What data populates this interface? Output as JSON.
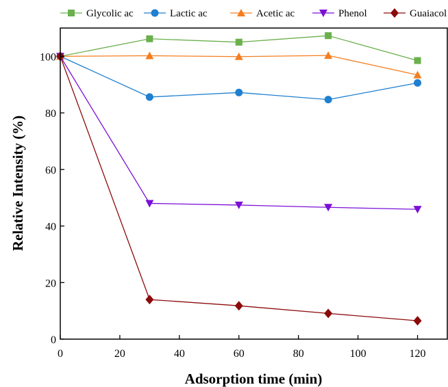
{
  "chart_data": {
    "type": "line",
    "title": "",
    "xlabel": "Adsorption time (min)",
    "ylabel": "Relative Intensity (%)",
    "xlim": [
      0,
      130
    ],
    "ylim": [
      0,
      110
    ],
    "xticks": [
      0,
      20,
      40,
      60,
      80,
      100,
      120
    ],
    "yticks": [
      0,
      20,
      40,
      60,
      80,
      100
    ],
    "x": [
      0,
      30,
      60,
      90,
      120
    ],
    "grid": false,
    "legend_position": "top",
    "series": [
      {
        "name": "Glycolic ac",
        "color": "#6ab04c",
        "marker": "square",
        "values": [
          100,
          106.2,
          105.0,
          107.3,
          98.5
        ]
      },
      {
        "name": "Lactic ac",
        "color": "#1f7fd0",
        "marker": "circle",
        "values": [
          100,
          85.6,
          87.2,
          84.7,
          90.6
        ]
      },
      {
        "name": "Acetic ac",
        "color": "#f47e20",
        "marker": "triangle-up",
        "values": [
          100,
          100.2,
          99.9,
          100.3,
          93.4
        ]
      },
      {
        "name": "Phenol",
        "color": "#7b0fd6",
        "marker": "triangle-down",
        "values": [
          100,
          48.0,
          47.4,
          46.6,
          45.9
        ]
      },
      {
        "name": "Guaiacol",
        "color": "#8b0a0a",
        "marker": "diamond",
        "values": [
          100,
          14.0,
          11.8,
          9.1,
          6.5
        ]
      }
    ]
  }
}
